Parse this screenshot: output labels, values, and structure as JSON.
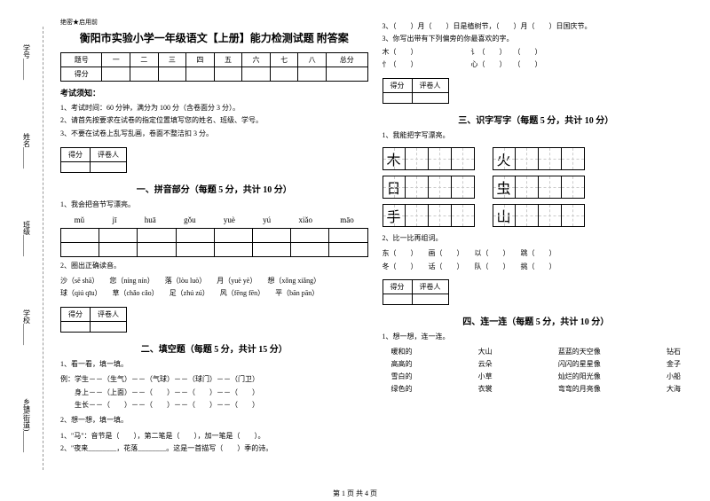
{
  "leftMargin": {
    "items": [
      "学号",
      "姓名",
      "班级",
      "学校",
      "乡镇(街道)"
    ],
    "dashLabels": [
      "题",
      "不",
      "内",
      "线",
      "封",
      "密"
    ]
  },
  "headerMark": "绝密★启用前",
  "title": "衡阳市实验小学一年级语文【上册】能力检测试题 附答案",
  "scoreTable": {
    "headers": [
      "题号",
      "一",
      "二",
      "三",
      "四",
      "五",
      "六",
      "七",
      "八",
      "总分"
    ],
    "row2": "得分"
  },
  "noticeTitle": "考试须知：",
  "notices": [
    "1、考试时间：60 分钟，满分为 100 分（含卷面分 3 分）。",
    "2、请首先按要求在试卷的指定位置填写您的姓名、班级、学号。",
    "3、不要在试卷上乱写乱画，卷面不整洁扣 3 分。"
  ],
  "scoreBox": {
    "c1": "得分",
    "c2": "评卷人"
  },
  "part1": {
    "title": "一、拼音部分（每题 5 分，共计 10 分）",
    "q1": "1、我会把音节写漂亮。",
    "pinyin": [
      "mǔ",
      "jī",
      "huā",
      "gǒu",
      "yuè",
      "yú",
      "xiǎo",
      "māo"
    ],
    "q2": "2、圈出正确读音。",
    "words": [
      "沙（sē shā）　　您（níng nín）　　落（lòu luò）　　月（yuè yè）　　想（xǒng xiǎng）",
      "球（qiú qīu）　　草（chǎo cǎo）　　足（zhú zú）　　风（fēng fēn）　　平（bān pān）"
    ]
  },
  "part2": {
    "title": "二、填空题（每题 5 分，共计 15 分）",
    "q1": "1、看一看，填一填。",
    "lines1": [
      "例：学生－－（生气）－－（气球）－－（球门）－－（门卫）",
      "　　身上－－（上面）－－（　　）－－（　　）－－（　　）",
      "　　生长－－（　　）－－（　　）－－（　　）－－（　　）"
    ],
    "q2": "2、想一想，填一填。",
    "lines2": [
      "1、\"马\"：音节是（　　），第二笔是（　　），加一笔是（　　）。",
      "2、\"夜来________，花落________。这是一首描写（　　）季的诗。"
    ]
  },
  "right": {
    "top": [
      "3、（　　）月（　　）日是植树节，（　　）月（　　）日国庆节。",
      "3、你写出带有下列偏旁的你最喜欢的字。",
      "木（　　）　　　　　　　　讠（　　）　　（　　）",
      "忄（　　）　　　　　　　　心（　　）　　（　　）"
    ],
    "part3": {
      "title": "三、识字写字（每题 5 分，共计 10 分）",
      "q1": "1、我能把字写漂亮。",
      "chars": [
        [
          "木",
          "火"
        ],
        [
          "日",
          "虫"
        ],
        [
          "手",
          "山"
        ]
      ],
      "q2": "2、比一比再组词。",
      "pairs": [
        "东（　　）　　画（　　）　　以（　　）　　跳（　　）",
        "冬（　　）　　话（　　）　　队（　　）　　挑（　　）"
      ]
    },
    "part4": {
      "title": "四、连一连（每题 5 分，共计 10 分）",
      "q1": "1、想一想，连一连。",
      "rows": [
        [
          "暖和的",
          "大山",
          "蓝蓝的天空像",
          "钻石"
        ],
        [
          "高高的",
          "云朵",
          "闪闪的星星像",
          "金子"
        ],
        [
          "雪白的",
          "小草",
          "灿烂的阳光像",
          "小船"
        ],
        [
          "绿色的",
          "衣裳",
          "弯弯的月亮像",
          "大海"
        ]
      ]
    }
  },
  "footer": "第 1 页 共 4 页"
}
